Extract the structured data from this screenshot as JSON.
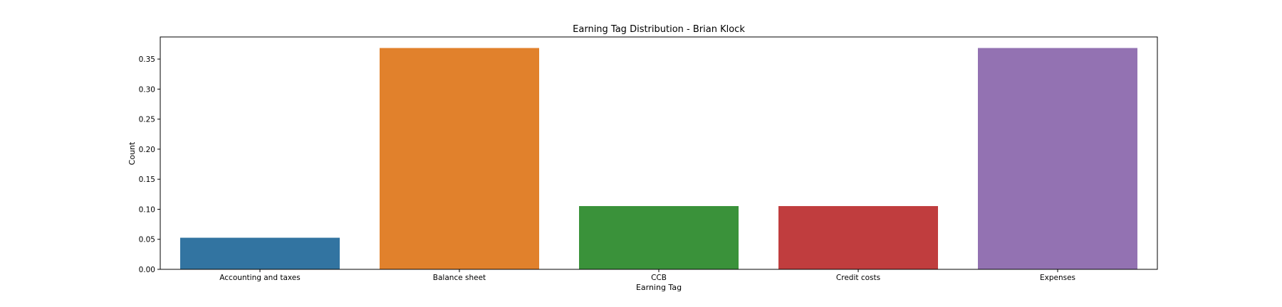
{
  "chart_data": {
    "type": "bar",
    "title": "Earning Tag Distribution - Brian Klock",
    "xlabel": "Earning Tag",
    "ylabel": "Count",
    "categories": [
      "Accounting and taxes",
      "Balance sheet",
      "CCB",
      "Credit costs",
      "Expenses"
    ],
    "values": [
      0.0526,
      0.3684,
      0.1053,
      0.1053,
      0.3684
    ],
    "colors": [
      "#3274a1",
      "#e1812c",
      "#3a923a",
      "#c03d3e",
      "#9372b2"
    ],
    "ylim": [
      0,
      0.3868
    ],
    "yticks": [
      0.0,
      0.05,
      0.1,
      0.15,
      0.2,
      0.25,
      0.3,
      0.35
    ],
    "ytick_labels": [
      "0.00",
      "0.05",
      "0.10",
      "0.15",
      "0.20",
      "0.25",
      "0.30",
      "0.35"
    ],
    "grid": false,
    "legend": "none"
  }
}
